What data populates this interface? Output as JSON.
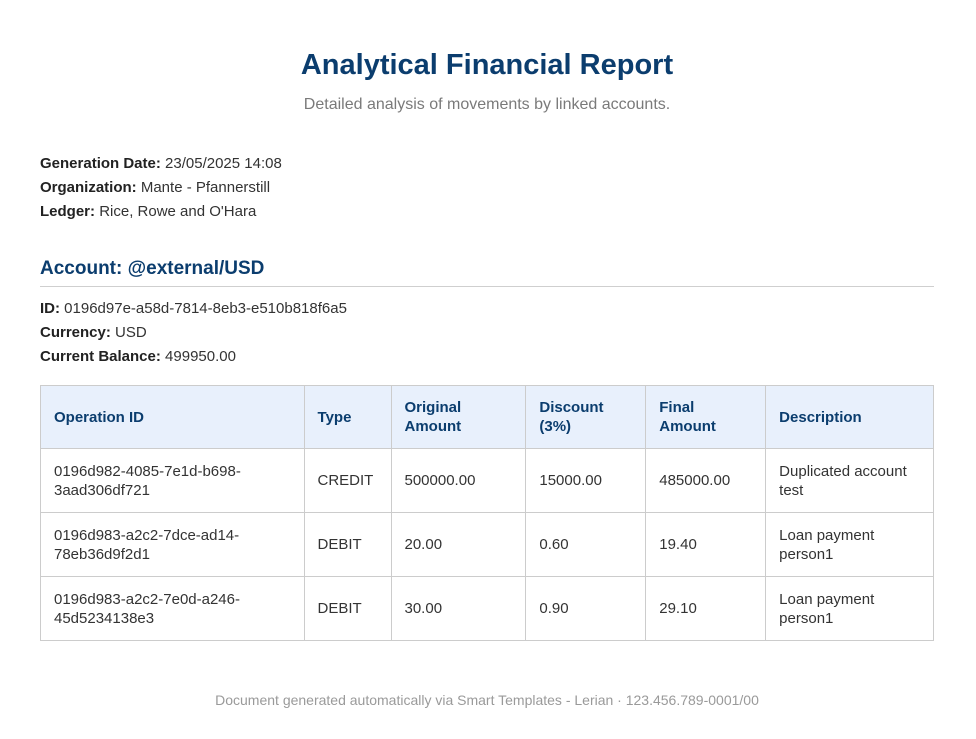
{
  "report": {
    "title": "Analytical Financial Report",
    "subtitle": "Detailed analysis of movements by linked accounts."
  },
  "meta": {
    "generation_date_label": "Generation Date:",
    "generation_date": "23/05/2025 14:08",
    "organization_label": "Organization:",
    "organization": "Mante - Pfannerstill",
    "ledger_label": "Ledger:",
    "ledger": "Rice, Rowe and O'Hara"
  },
  "account": {
    "heading": "Account: @external/USD",
    "id_label": "ID:",
    "id": "0196d97e-a58d-7814-8eb3-e510b818f6a5",
    "currency_label": "Currency:",
    "currency": "USD",
    "balance_label": "Current Balance:",
    "balance": "499950.00"
  },
  "table": {
    "headers": [
      "Operation ID",
      "Type",
      "Original Amount",
      "Discount (3%)",
      "Final Amount",
      "Description"
    ],
    "rows": [
      {
        "operation_id": "0196d982-4085-7e1d-b698-3aad306df721",
        "type": "CREDIT",
        "original": "500000.00",
        "discount": "15000.00",
        "final": "485000.00",
        "description": "Duplicated account test"
      },
      {
        "operation_id": "0196d983-a2c2-7dce-ad14-78eb36d9f2d1",
        "type": "DEBIT",
        "original": "20.00",
        "discount": "0.60",
        "final": "19.40",
        "description": "Loan payment person1"
      },
      {
        "operation_id": "0196d983-a2c2-7e0d-a246-45d5234138e3",
        "type": "DEBIT",
        "original": "30.00",
        "discount": "0.90",
        "final": "29.10",
        "description": "Loan payment person1"
      }
    ]
  },
  "footer": {
    "text": "Document generated automatically via Smart Templates - Lerian · 123.456.789-0001/00"
  }
}
